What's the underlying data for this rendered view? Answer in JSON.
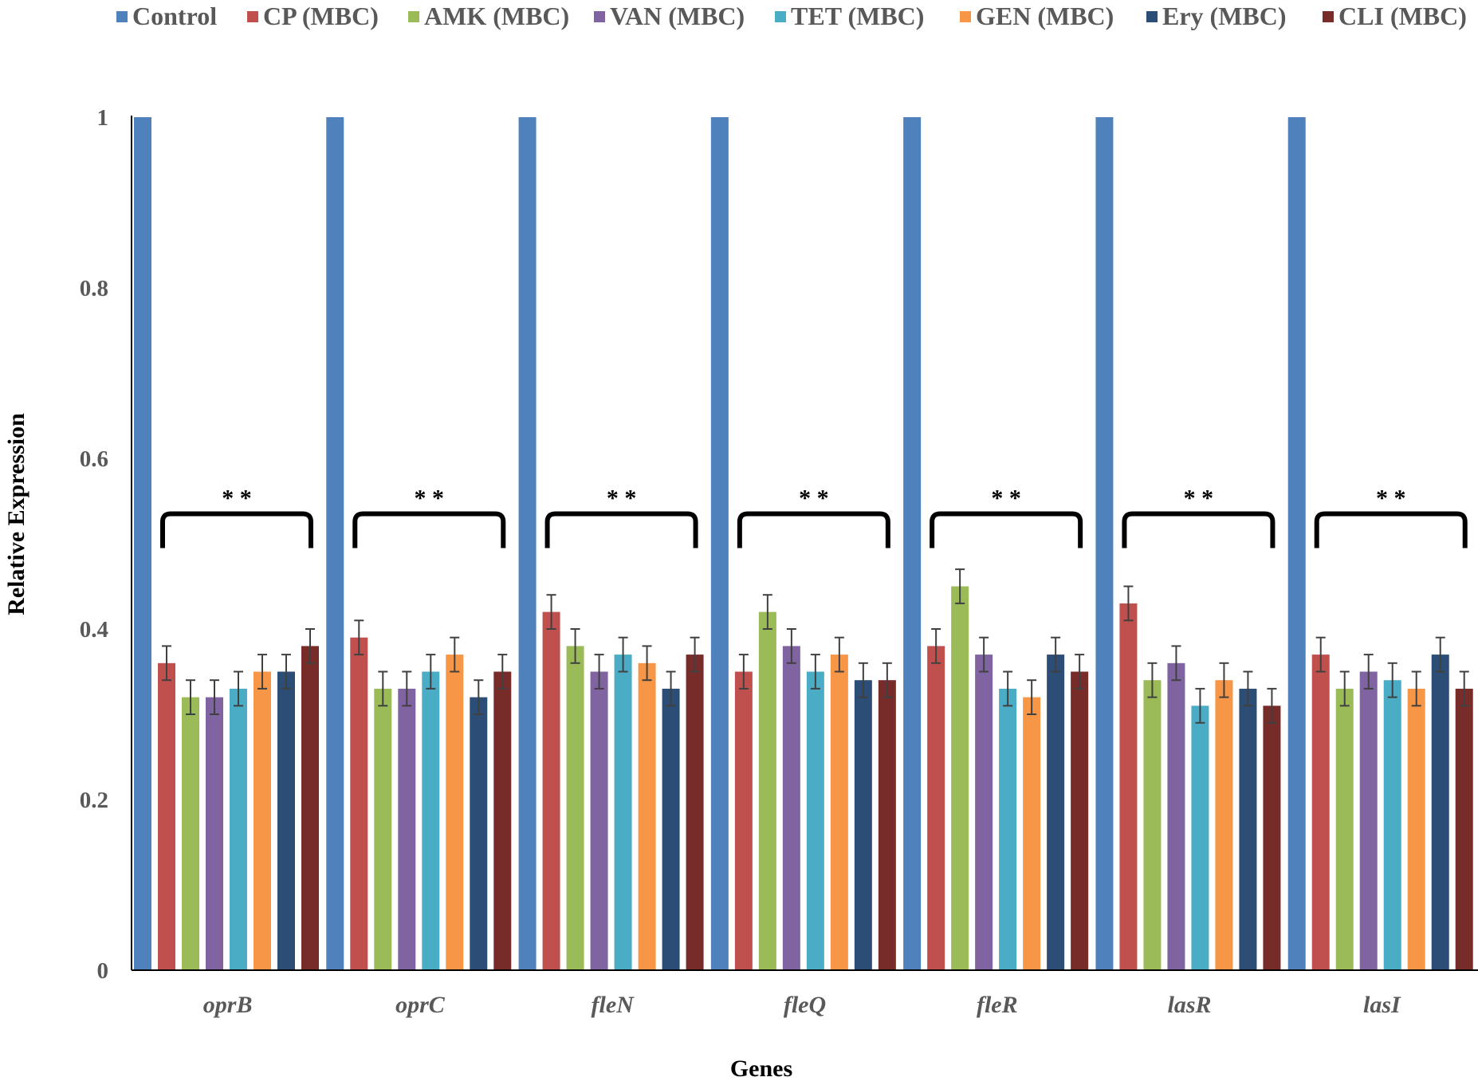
{
  "chart_data": {
    "type": "bar",
    "title": "",
    "xlabel": "Genes",
    "ylabel": "Relative Expression",
    "ylim": [
      0,
      1
    ],
    "yticks": [
      "0",
      "0.2",
      "0.4",
      "0.6",
      "0.8",
      "1"
    ],
    "categories": [
      "oprB",
      "oprC",
      "fleN",
      "fleQ",
      "fleR",
      "lasR",
      "lasI"
    ],
    "legend_position": "top",
    "series": [
      {
        "name": "Control",
        "color": "#4F81BD",
        "values": [
          1,
          1,
          1,
          1,
          1,
          1,
          1
        ]
      },
      {
        "name": "CP (MBC)",
        "color": "#C0504D",
        "values": [
          0.36,
          0.39,
          0.42,
          0.35,
          0.38,
          0.43,
          0.37
        ]
      },
      {
        "name": "AMK (MBC)",
        "color": "#9BBB59",
        "values": [
          0.32,
          0.33,
          0.38,
          0.42,
          0.45,
          0.34,
          0.33
        ]
      },
      {
        "name": "VAN (MBC)",
        "color": "#8064A2",
        "values": [
          0.32,
          0.33,
          0.35,
          0.38,
          0.37,
          0.36,
          0.35
        ]
      },
      {
        "name": "TET (MBC)",
        "color": "#4BACC6",
        "values": [
          0.33,
          0.35,
          0.37,
          0.35,
          0.33,
          0.31,
          0.34
        ]
      },
      {
        "name": "GEN (MBC)",
        "color": "#F79646",
        "values": [
          0.35,
          0.37,
          0.36,
          0.37,
          0.32,
          0.34,
          0.33
        ]
      },
      {
        "name": "Ery (MBC)",
        "color": "#2C4D75",
        "values": [
          0.35,
          0.32,
          0.33,
          0.34,
          0.37,
          0.33,
          0.37
        ]
      },
      {
        "name": "CLI (MBC)",
        "color": "#772C2A",
        "values": [
          0.38,
          0.35,
          0.37,
          0.34,
          0.35,
          0.31,
          0.33
        ]
      }
    ],
    "error": 0.02,
    "annotations": {
      "significance_label": "* *",
      "bracket_level": 0.535
    }
  }
}
